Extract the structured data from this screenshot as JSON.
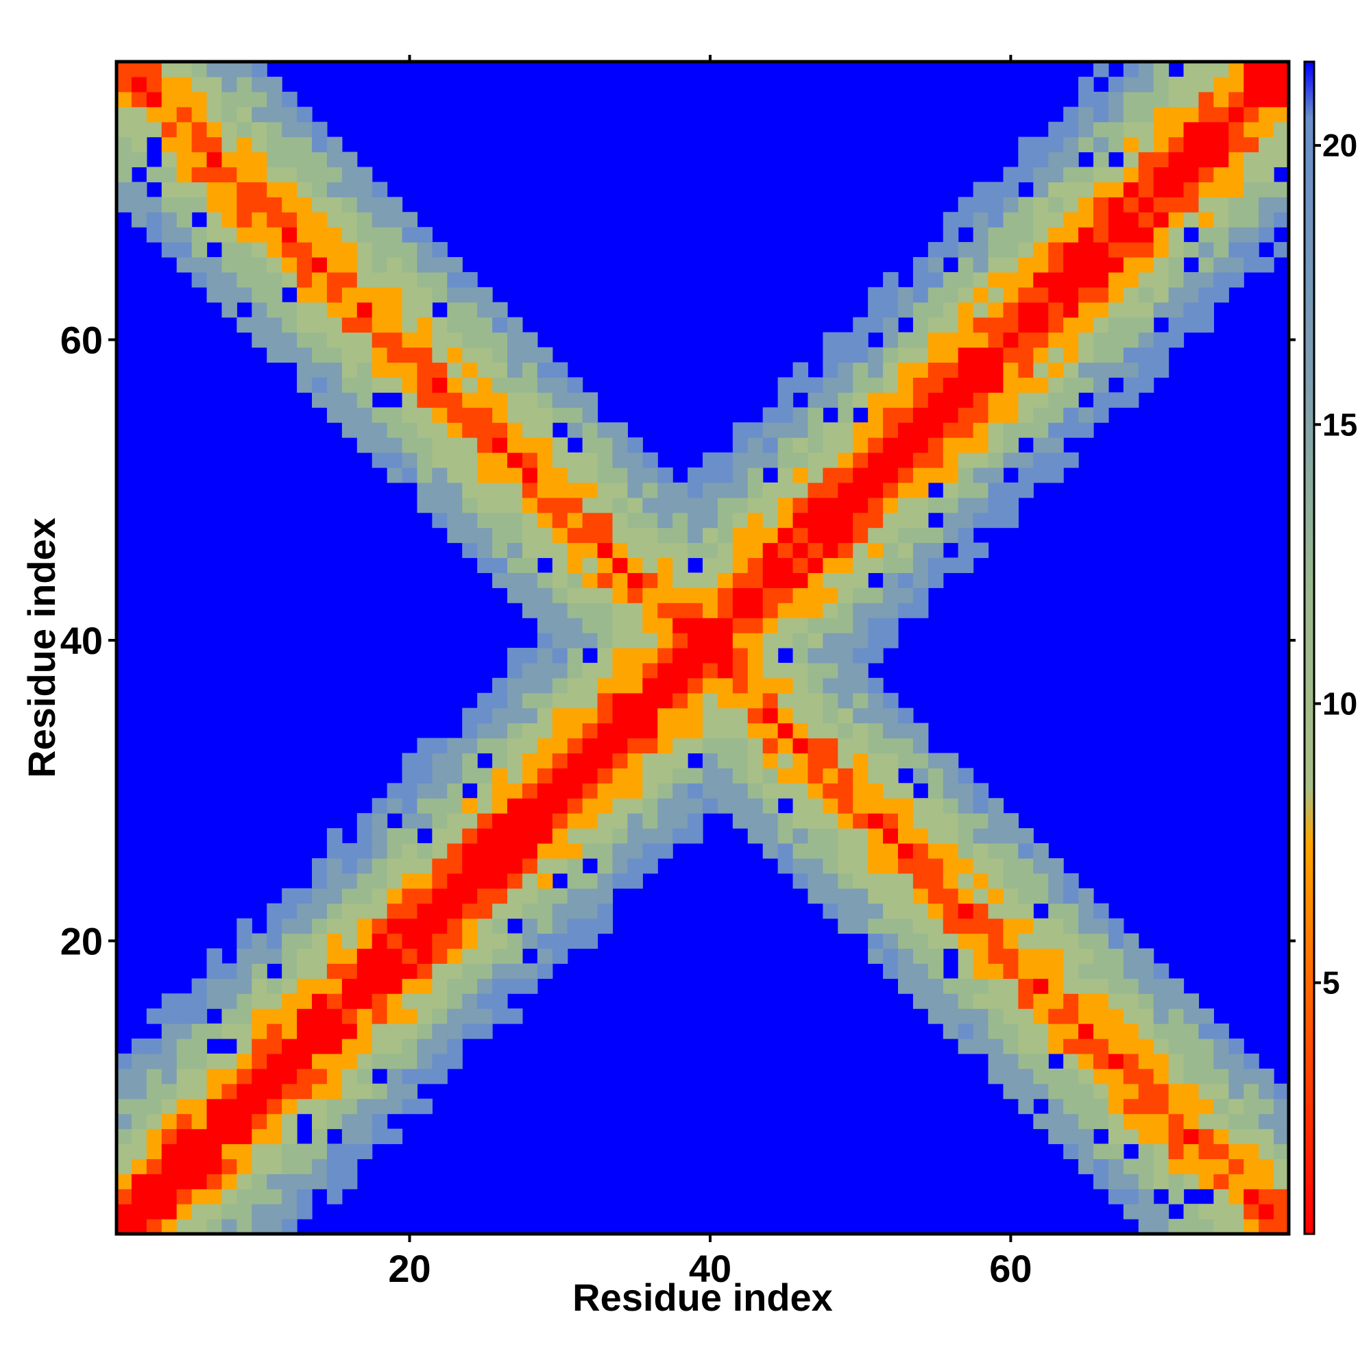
{
  "chart_data": {
    "type": "heatmap",
    "title": "",
    "xlabel": "Residue index",
    "ylabel": "Residue index",
    "n_residues": 78,
    "xlim": [
      0.5,
      78.5
    ],
    "ylim": [
      0.5,
      78.5
    ],
    "x_ticks": [
      "20",
      "40",
      "60"
    ],
    "y_ticks": [
      "20",
      "40",
      "60"
    ],
    "grid": false,
    "colorbar": {
      "placement": "right",
      "range": [
        0.5,
        21.5
      ],
      "ticks": [
        "5",
        "10",
        "15",
        "20"
      ],
      "stops": [
        {
          "value": 0.5,
          "color": "#ff0000"
        },
        {
          "value": 3.5,
          "color": "#ff4500"
        },
        {
          "value": 7.5,
          "color": "#ffa500"
        },
        {
          "value": 8.5,
          "color": "#a9bf88"
        },
        {
          "value": 12,
          "color": "#9bb98e"
        },
        {
          "value": 16,
          "color": "#7d9eb3"
        },
        {
          "value": 20.5,
          "color": "#6b8fc9"
        },
        {
          "value": 21.5,
          "color": "#0000ff"
        }
      ]
    },
    "colors": {
      "background": "#0000ff",
      "near": "#ff0000",
      "orange_red": "#ff4500",
      "orange": "#ffa500",
      "sage": "#a8bf88",
      "grey_green": "#9bb98e",
      "grey_blue": "#7d9eb3",
      "steel_blue": "#6b8fc9"
    },
    "main_diagonal": {
      "from": [
        1,
        1
      ],
      "to": [
        78,
        78
      ]
    },
    "anti_diagonal": {
      "from": [
        1,
        78
      ],
      "to": [
        78,
        1
      ]
    },
    "note_values": "cell value = distance between residue i and residue j in the colorbar units; values above 21 are drawn as background blue"
  }
}
